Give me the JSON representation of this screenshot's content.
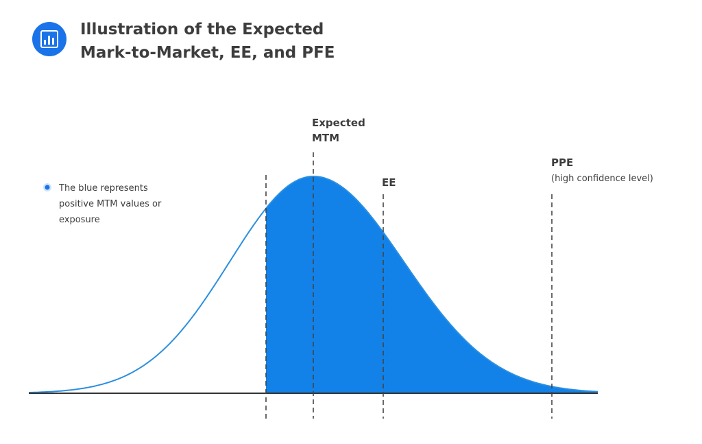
{
  "header": {
    "title_lines": [
      "Illustration of the Expected",
      "Mark-to-Market, EE, and PFE"
    ]
  },
  "legend": {
    "lines": [
      "The blue represents",
      "positive MTM values or",
      "exposure"
    ]
  },
  "markers": {
    "expected_mtm": [
      "Expected",
      "MTM"
    ],
    "ee": "EE",
    "ppe": "PPE",
    "ppe_note": "(high confidence level)"
  }
}
